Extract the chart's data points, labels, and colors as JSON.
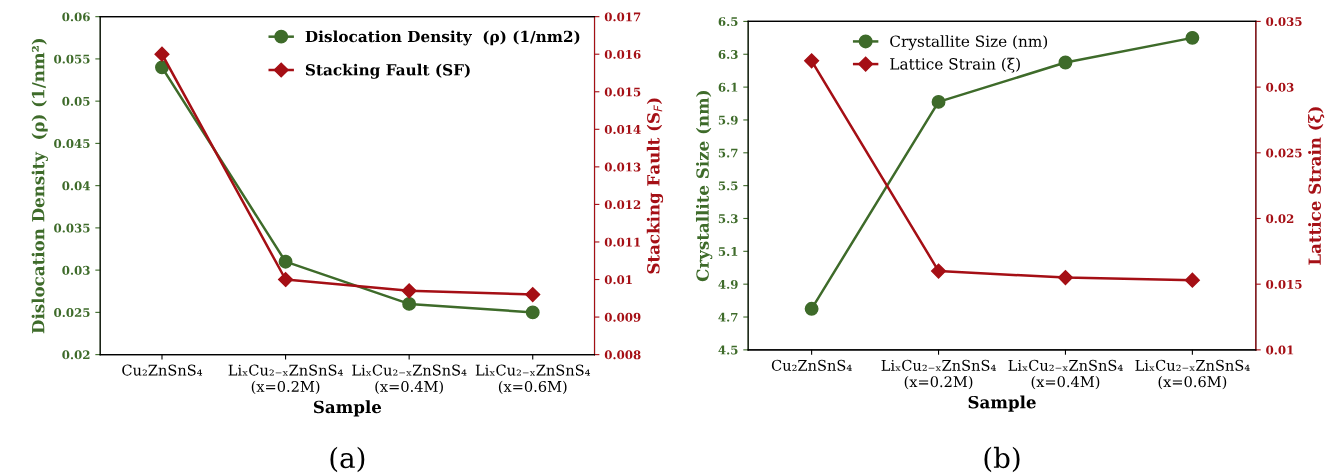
{
  "chart_data": [
    {
      "type": "line",
      "categories": [
        "Cu₂ZnSnS₄",
        "LiₓCu₂₋ₓZnSnS₄\n(x=0.2M)",
        "LiₓCu₂₋ₓZnSnS₄\n(x=0.4M)",
        "LiₓCu₂₋ₓZnSnS₄\n(x=0.6M)"
      ],
      "series": [
        {
          "name": "Dislocation Density  (ρ) (1/nm2)",
          "color": "#3e6b2a",
          "marker": "circle",
          "values": [
            0.054,
            0.031,
            0.026,
            0.025
          ]
        },
        {
          "name": "Stacking Fault (SF)",
          "color": "#a50f15",
          "marker": "diamond",
          "axis": "y2",
          "values": [
            0.016,
            0.01,
            0.0097,
            0.0096
          ]
        }
      ],
      "xlabel": "Sample",
      "ylabel": "Dislocation Density  (ρ) (1/nm²)",
      "y2label": "Stacking Fault (S$_{F}$)",
      "ylim": [
        0.02,
        0.06
      ],
      "yticks": [
        0.02,
        0.025,
        0.03,
        0.035,
        0.04,
        0.045,
        0.05,
        0.055,
        0.06
      ],
      "y2lim": [
        0.008,
        0.017
      ],
      "y2ticks": [
        0.008,
        0.009,
        0.01,
        0.011,
        0.012,
        0.013,
        0.014,
        0.015,
        0.016,
        0.017
      ],
      "legend": "top right",
      "grid": false,
      "annotations": [
        "(a)"
      ]
    },
    {
      "type": "line",
      "categories": [
        "Cu₂ZnSnS₄",
        "LiₓCu₂₋ₓZnSnS₄\n(x=0.2M)",
        "LiₓCu₂₋ₓZnSnS₄\n(x=0.4M)",
        "LiₓCu₂₋ₓZnSnS₄\n(x=0.6M)"
      ],
      "series": [
        {
          "name": "Crystallite Size (nm)",
          "color": "#3e6b2a",
          "marker": "circle",
          "values": [
            4.75,
            6.01,
            6.25,
            6.4
          ]
        },
        {
          "name": "Lattice Strain (ξ)",
          "color": "#a50f15",
          "marker": "diamond",
          "axis": "y2",
          "values": [
            0.032,
            0.016,
            0.0155,
            0.0153
          ]
        }
      ],
      "xlabel": "Sample",
      "ylabel": "Crystallite Size (nm)",
      "y2label": "Lattice Strain (ξ)",
      "ylim": [
        4.5,
        6.5
      ],
      "yticks": [
        4.5,
        4.7,
        4.9,
        5.1,
        5.3,
        5.5,
        5.7,
        5.9,
        6.1,
        6.3,
        6.5
      ],
      "y2lim": [
        0.01,
        0.035
      ],
      "y2ticks": [
        0.01,
        0.015,
        0.02,
        0.025,
        0.03,
        0.035
      ],
      "legend": "top",
      "grid": false,
      "annotations": [
        "(b)"
      ]
    }
  ]
}
